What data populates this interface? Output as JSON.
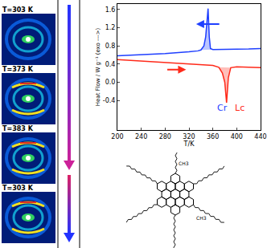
{
  "chart_data": {
    "type": "line",
    "x_label": "T/K",
    "y_label": "Heat Flow / W g⁻¹ (exo --->)",
    "xlim": [
      200,
      440
    ],
    "xticks": [
      200,
      240,
      280,
      320,
      360,
      400,
      440
    ],
    "ylim": [
      -1.05,
      1.72
    ],
    "yticks": [
      -0.4,
      {
        "value": 0,
        "label": "0.0"
      },
      0.4,
      0.8,
      1.2,
      1.6
    ],
    "grid": false,
    "series": [
      {
        "name": "Cr",
        "color": "#1f3fff",
        "x": [
          200,
          240,
          280,
          320,
          335,
          340,
          345,
          348,
          350,
          352,
          354,
          356,
          360,
          380,
          400,
          420,
          440
        ],
        "values": [
          0.58,
          0.6,
          0.63,
          0.67,
          0.69,
          0.71,
          0.8,
          1.0,
          1.3,
          1.62,
          1.0,
          0.74,
          0.72,
          0.72,
          0.73,
          0.73,
          0.74
        ]
      },
      {
        "name": "Lc",
        "color": "#ff2a1a",
        "x": [
          200,
          240,
          280,
          320,
          360,
          370,
          376,
          380,
          383,
          386,
          390,
          400,
          440
        ],
        "values": [
          0.5,
          0.47,
          0.44,
          0.41,
          0.37,
          0.33,
          0.2,
          0.0,
          -0.45,
          0.1,
          0.32,
          0.34,
          0.32
        ]
      }
    ]
  },
  "images": [
    {
      "label": "T=303 K"
    },
    {
      "label": "T=373 K"
    },
    {
      "label": "T=383 K"
    },
    {
      "label": "T=303 K"
    }
  ],
  "molecule": {
    "labels": [
      "CH3",
      "CH3"
    ]
  }
}
